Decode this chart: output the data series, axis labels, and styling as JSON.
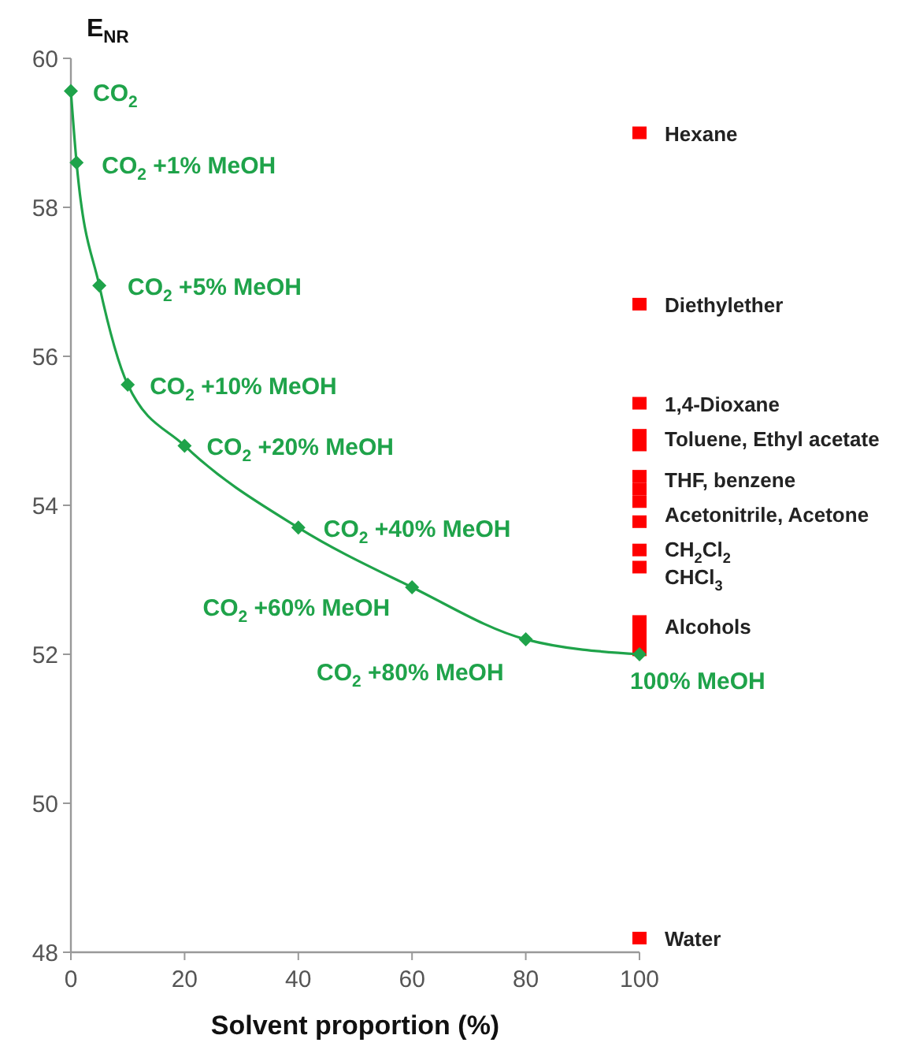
{
  "chart_data": {
    "type": "line",
    "xlabel": "Solvent proportion (%)",
    "ylabel": "E$_{NR}$",
    "xlim": [
      0,
      100
    ],
    "ylim": [
      48,
      60
    ],
    "xticks": [
      0,
      20,
      40,
      60,
      80,
      100
    ],
    "yticks": [
      48,
      50,
      52,
      54,
      56,
      58,
      60
    ],
    "grid": false,
    "series": [
      {
        "color": "#1fa34a",
        "marker": "diamond",
        "x": [
          0,
          1,
          5,
          10,
          20,
          40,
          60,
          80,
          100
        ],
        "values": [
          59.56,
          58.6,
          56.95,
          55.62,
          54.8,
          53.7,
          52.9,
          52.2,
          52.0
        ]
      },
      {
        "type": "scatter",
        "color": "#ff0000",
        "marker": "square",
        "x": [
          100,
          100,
          100,
          100,
          100,
          100,
          100,
          100,
          100,
          100,
          100,
          100,
          100,
          100,
          100,
          100
        ],
        "values": [
          59.0,
          56.7,
          55.37,
          54.94,
          54.81,
          54.39,
          54.22,
          54.05,
          53.78,
          53.4,
          53.17,
          52.44,
          52.32,
          52.19,
          52.06,
          48.19
        ]
      }
    ],
    "annotations": [
      {
        "text": "CO$_{2}$",
        "x": 0,
        "y": 59.56
      },
      {
        "text": "CO$_{2}$ +1% MeOH",
        "x": 1,
        "y": 58.6
      },
      {
        "text": "CO$_{2}$ +5% MeOH",
        "x": 5,
        "y": 56.95
      },
      {
        "text": "CO$_{2}$ +10% MeOH",
        "x": 10,
        "y": 55.62
      },
      {
        "text": "CO$_{2}$ +20% MeOH",
        "x": 20,
        "y": 54.8
      },
      {
        "text": "CO$_{2}$ +40% MeOH",
        "x": 40,
        "y": 53.7
      },
      {
        "text": "CO$_{2}$ +60% MeOH",
        "x": 60,
        "y": 52.9
      },
      {
        "text": "CO$_{2}$ +80% MeOH",
        "x": 80,
        "y": 52.2
      },
      {
        "text": "100% MeOH",
        "x": 100,
        "y": 52.0
      },
      {
        "text": "Hexane",
        "x": 100,
        "y": 59.0
      },
      {
        "text": "Diethylether",
        "x": 100,
        "y": 56.7
      },
      {
        "text": "1,4-Dioxane",
        "x": 100,
        "y": 55.37
      },
      {
        "text": "Toluene, Ethyl acetate",
        "x": 100,
        "y": 54.94
      },
      {
        "text": "THF, benzene",
        "x": 100,
        "y": 54.39
      },
      {
        "text": "Acetonitrile, Acetone",
        "x": 100,
        "y": 53.78
      },
      {
        "text": "CH$_{2}$Cl$_{2}$",
        "x": 100,
        "y": 53.4
      },
      {
        "text": "CHCl$_{3}$",
        "x": 100,
        "y": 53.17
      },
      {
        "text": "Alcohols",
        "x": 100,
        "y": 52.44
      },
      {
        "text": "Water",
        "x": 100,
        "y": 48.19
      }
    ]
  }
}
